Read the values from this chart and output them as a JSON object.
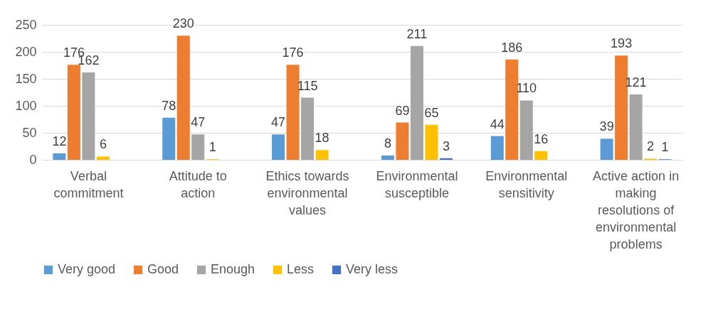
{
  "chart_data": {
    "type": "bar",
    "categories": [
      "Verbal commitment",
      "Attitude to action",
      "Ethics towards environmental values",
      "Environmental susceptible",
      "Environmental sensitivity",
      "Active action in making resolutions of environmental problems"
    ],
    "series": [
      {
        "name": "Very good",
        "color": "#5b9bd5",
        "values": [
          12,
          78,
          47,
          8,
          44,
          39
        ]
      },
      {
        "name": "Good",
        "color": "#ed7d31",
        "values": [
          176,
          230,
          176,
          69,
          186,
          193
        ]
      },
      {
        "name": "Enough",
        "color": "#a5a5a5",
        "values": [
          162,
          47,
          115,
          211,
          110,
          121
        ]
      },
      {
        "name": "Less",
        "color": "#ffc000",
        "values": [
          6,
          1,
          18,
          65,
          16,
          2
        ]
      },
      {
        "name": "Very less",
        "color": "#4472c4",
        "values": [
          null,
          null,
          null,
          3,
          null,
          1
        ]
      }
    ],
    "ylim": [
      0,
      250
    ],
    "yticks": [
      0,
      50,
      100,
      150,
      200,
      250
    ],
    "grid": "y",
    "legend": "bottom",
    "data_labels": true
  }
}
